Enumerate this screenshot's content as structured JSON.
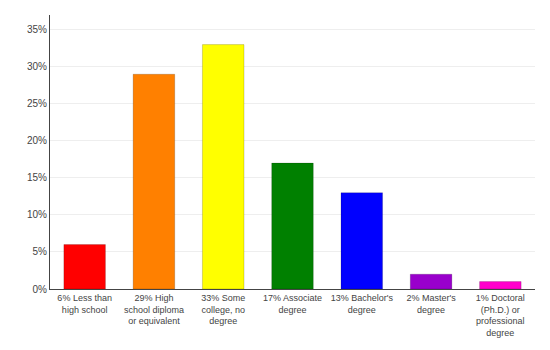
{
  "chart_data": {
    "type": "bar",
    "categories": [
      "6% Less than\nhigh school",
      "29% High\nschool diploma\nor equivalent",
      "33% Some\ncollege, no\ndegree",
      "17% Associate\ndegree",
      "13% Bachelor's\ndegree",
      "2% Master's\ndegree",
      "1% Doctoral\n(Ph.D.) or\nprofessional\ndegree"
    ],
    "values": [
      6,
      29,
      33,
      17,
      13,
      2,
      1
    ],
    "colors": [
      "#ff0000",
      "#ff8000",
      "#ffff00",
      "#008000",
      "#0000ff",
      "#9900cc",
      "#ff00cc"
    ],
    "ylim": [
      0,
      37
    ],
    "yticks": [
      {
        "value": 0,
        "label": "0%"
      },
      {
        "value": 5,
        "label": "5%"
      },
      {
        "value": 10,
        "label": "10%"
      },
      {
        "value": 15,
        "label": "15%"
      },
      {
        "value": 20,
        "label": "20%"
      },
      {
        "value": 25,
        "label": "25%"
      },
      {
        "value": 30,
        "label": "30%"
      },
      {
        "value": 35,
        "label": "35%"
      }
    ],
    "grid": true
  }
}
